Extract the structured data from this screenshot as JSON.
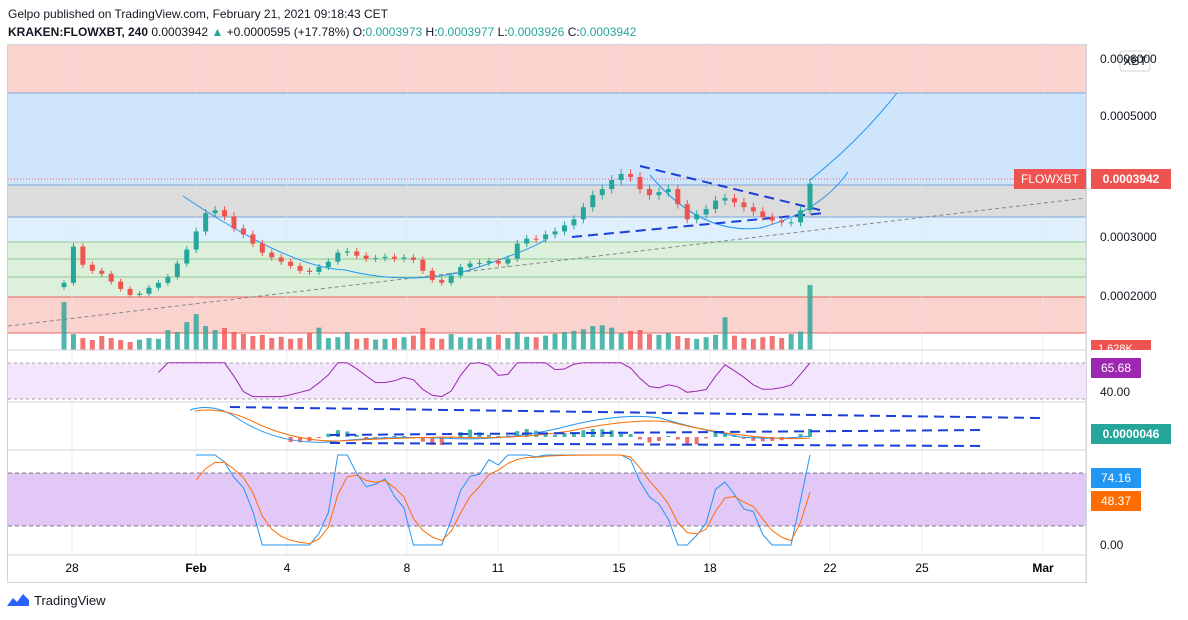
{
  "header": {
    "publish_line": "Gelpo published on TradingView.com, February 21, 2021 09:18:43 CET",
    "symbol": "KRAKEN:FLOWXBT, 240",
    "last": "0.0003942",
    "change_arrow": "▲",
    "change": "+0.0000595 (+17.78%)",
    "o_label": "O:",
    "o_value": "0.0003973",
    "h_label": "H:",
    "h_value": "0.0003977",
    "l_label": "L:",
    "l_value": "0.0003926",
    "c_label": "C:",
    "c_value": "0.0003942"
  },
  "price_axis": {
    "currency_badge": "XBT",
    "ticks": [
      "0.0006000",
      "0.0005000",
      "0.0004000",
      "0.0003000",
      "0.0002000"
    ],
    "symbol_tag": "FLOWXBT",
    "last_price_tag": "0.0003942",
    "volume_tag": "1.628K"
  },
  "rsi_panel": {
    "value_tag": "65.68",
    "level_label": "40.00"
  },
  "macd_panel": {
    "value_tag": "0.0000046"
  },
  "stoch_panel": {
    "k_tag": "74.16",
    "d_tag": "48.37",
    "zero_label": "0.00"
  },
  "time_axis": [
    "28",
    "Feb",
    "4",
    "8",
    "11",
    "15",
    "18",
    "22",
    "25",
    "Mar"
  ],
  "footer": {
    "brand": "TradingView"
  },
  "colors": {
    "up": "#26a69a",
    "down": "#ef5350",
    "red_zone": "#fbd3ce",
    "blue_zone": "#cfe5fb",
    "gray_zone": "#dcdcdc",
    "green_zone": "#dcf0dc",
    "rsi_band": "#f3e5fb",
    "stoch_band": "#e2c8f7",
    "rsi_line": "#9c27b0",
    "k_line": "#2196f3",
    "d_line": "#ff6d00",
    "tag_red": "#ef5350",
    "tag_purple": "#9c27b0",
    "tag_teal": "#26a69a"
  },
  "chart_data": {
    "type": "candlestick",
    "symbol": "KRAKEN:FLOWXBT",
    "interval": "240",
    "x_ticks": [
      "28",
      "Feb",
      "4",
      "8",
      "11",
      "15",
      "18",
      "22",
      "25",
      "Mar"
    ],
    "y_ticks": [
      0.0002,
      0.0003,
      0.0004,
      0.0005,
      0.0006
    ],
    "ylim": [
      0.000175,
      0.000635
    ],
    "close_series": [
      0.00023,
      0.00029,
      0.00026,
      0.00025,
      0.000245,
      0.000232,
      0.00022,
      0.00021,
      0.000212,
      0.000222,
      0.00023,
      0.00024,
      0.000262,
      0.000285,
      0.000315,
      0.000345,
      0.00035,
      0.00034,
      0.00032,
      0.00031,
      0.000295,
      0.00028,
      0.000272,
      0.000265,
      0.000258,
      0.00025,
      0.000248,
      0.000256,
      0.000265,
      0.00028,
      0.000282,
      0.000275,
      0.00027,
      0.000271,
      0.000273,
      0.00027,
      0.000272,
      0.000268,
      0.00025,
      0.000235,
      0.00023,
      0.000242,
      0.000256,
      0.000262,
      0.000263,
      0.000266,
      0.000262,
      0.00027,
      0.000295,
      0.000303,
      0.000302,
      0.00031,
      0.000315,
      0.000325,
      0.000335,
      0.000355,
      0.000375,
      0.000385,
      0.0004,
      0.00041,
      0.000405,
      0.000385,
      0.000375,
      0.00038,
      0.000385,
      0.00036,
      0.000335,
      0.000343,
      0.000352,
      0.000366,
      0.00037,
      0.000363,
      0.000355,
      0.000348,
      0.000339,
      0.000333,
      0.00033,
      0.00033,
      0.00035,
      0.000394
    ],
    "volume_series": [
      1200,
      400,
      300,
      250,
      350,
      300,
      250,
      200,
      260,
      300,
      280,
      500,
      450,
      700,
      900,
      600,
      500,
      550,
      450,
      400,
      350,
      380,
      300,
      330,
      280,
      300,
      420,
      560,
      300,
      320,
      450,
      280,
      300,
      260,
      280,
      300,
      320,
      360,
      550,
      300,
      280,
      400,
      320,
      310,
      290,
      330,
      380,
      300,
      450,
      330,
      320,
      360,
      410,
      450,
      480,
      520,
      600,
      620,
      560,
      420,
      480,
      500,
      400,
      380,
      420,
      350,
      300,
      280,
      320,
      380,
      820,
      360,
      300,
      280,
      320,
      350,
      300,
      400,
      460,
      1628
    ],
    "indicators": {
      "rsi": {
        "last": 65.68,
        "levels": [
          70,
          30
        ],
        "ylim": [
          0,
          100
        ]
      },
      "macd": {
        "last": 4.6e-06
      },
      "stochastic": {
        "k_last": 74.16,
        "d_last": 48.37,
        "levels": [
          80,
          20
        ],
        "ylim": [
          0,
          100
        ]
      }
    }
  }
}
